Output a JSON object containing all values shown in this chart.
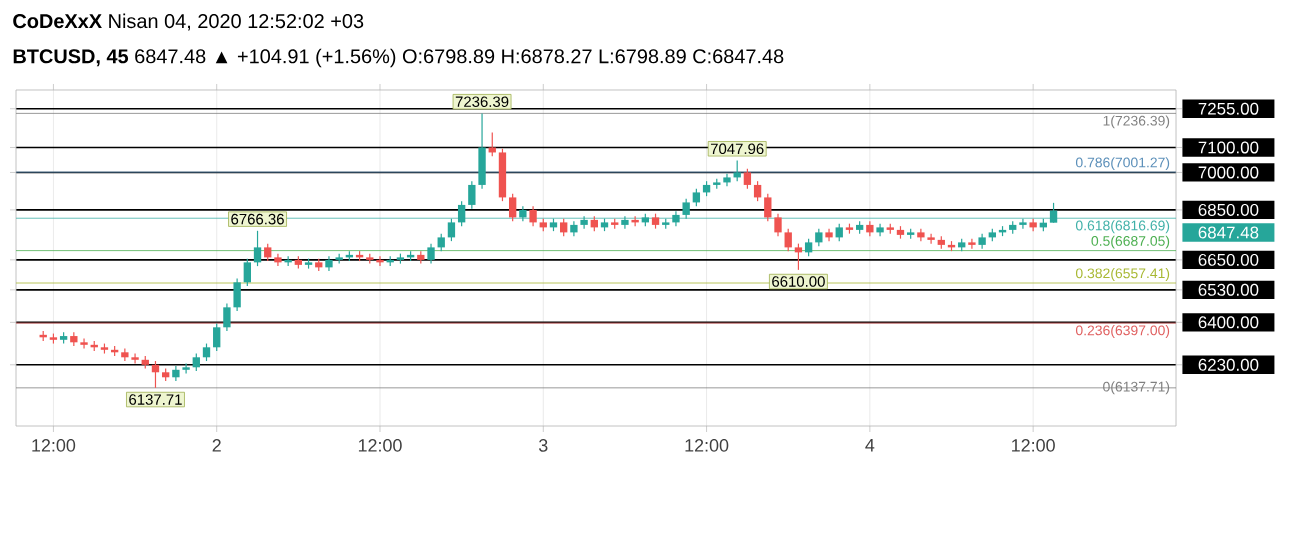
{
  "chart_data": {
    "type": "candlestick",
    "title": "**CoDeXxX** Nisan 04, 2020 12:52:02 +03",
    "subtitle": "**BTCUSD, 45** 6847.48 ▲ +104.91 (+1.56%) O:6798.89 H:6878.27 L:6798.89 C:6847.48",
    "x": [
      "2020-04-01T11:15",
      "2020-04-01T12:00",
      "2020-04-01T12:45",
      "2020-04-01T13:30",
      "2020-04-01T14:15",
      "2020-04-01T15:00",
      "2020-04-01T15:45",
      "2020-04-01T16:30",
      "2020-04-01T17:15",
      "2020-04-01T18:00",
      "2020-04-01T18:45",
      "2020-04-01T19:30",
      "2020-04-01T20:15",
      "2020-04-01T21:00",
      "2020-04-01T21:45",
      "2020-04-01T22:30",
      "2020-04-01T23:15",
      "2020-04-02T00:00",
      "2020-04-02T00:45",
      "2020-04-02T01:30",
      "2020-04-02T02:15",
      "2020-04-02T03:00",
      "2020-04-02T03:45",
      "2020-04-02T04:30",
      "2020-04-02T05:15",
      "2020-04-02T06:00",
      "2020-04-02T06:45",
      "2020-04-02T07:30",
      "2020-04-02T08:15",
      "2020-04-02T09:00",
      "2020-04-02T09:45",
      "2020-04-02T10:30",
      "2020-04-02T11:15",
      "2020-04-02T12:00",
      "2020-04-02T12:45",
      "2020-04-02T13:30",
      "2020-04-02T14:15",
      "2020-04-02T15:00",
      "2020-04-02T15:45",
      "2020-04-02T16:30",
      "2020-04-02T17:15",
      "2020-04-02T18:00",
      "2020-04-02T18:45",
      "2020-04-02T19:30",
      "2020-04-02T20:15",
      "2020-04-02T21:00",
      "2020-04-02T21:45",
      "2020-04-02T22:30",
      "2020-04-02T23:15",
      "2020-04-03T00:00",
      "2020-04-03T00:45",
      "2020-04-03T01:30",
      "2020-04-03T02:15",
      "2020-04-03T03:00",
      "2020-04-03T03:45",
      "2020-04-03T04:30",
      "2020-04-03T05:15",
      "2020-04-03T06:00",
      "2020-04-03T06:45",
      "2020-04-03T07:30",
      "2020-04-03T08:15",
      "2020-04-03T09:00",
      "2020-04-03T09:45",
      "2020-04-03T10:30",
      "2020-04-03T11:15",
      "2020-04-03T12:00",
      "2020-04-03T12:45",
      "2020-04-03T13:30",
      "2020-04-03T14:15",
      "2020-04-03T15:00",
      "2020-04-03T15:45",
      "2020-04-03T16:30",
      "2020-04-03T17:15",
      "2020-04-03T18:00",
      "2020-04-03T18:45",
      "2020-04-03T19:30",
      "2020-04-03T20:15",
      "2020-04-03T21:00",
      "2020-04-03T21:45",
      "2020-04-03T22:30",
      "2020-04-03T23:15",
      "2020-04-04T00:00",
      "2020-04-04T00:45",
      "2020-04-04T01:30",
      "2020-04-04T02:15",
      "2020-04-04T03:00",
      "2020-04-04T03:45",
      "2020-04-04T04:30",
      "2020-04-04T05:15",
      "2020-04-04T06:00",
      "2020-04-04T06:45",
      "2020-04-04T07:30",
      "2020-04-04T08:15",
      "2020-04-04T09:00",
      "2020-04-04T09:45",
      "2020-04-04T10:30",
      "2020-04-04T11:15",
      "2020-04-04T12:00",
      "2020-04-04T12:45",
      "2020-04-04T13:30"
    ],
    "ohlc": [
      [
        6350,
        6365,
        6325,
        6340
      ],
      [
        6340,
        6355,
        6315,
        6330
      ],
      [
        6330,
        6360,
        6315,
        6345
      ],
      [
        6345,
        6360,
        6305,
        6320
      ],
      [
        6320,
        6335,
        6295,
        6310
      ],
      [
        6310,
        6325,
        6285,
        6300
      ],
      [
        6300,
        6315,
        6275,
        6290
      ],
      [
        6290,
        6305,
        6265,
        6280
      ],
      [
        6280,
        6295,
        6245,
        6260
      ],
      [
        6260,
        6275,
        6235,
        6250
      ],
      [
        6250,
        6265,
        6215,
        6230
      ],
      [
        6230,
        6245,
        6137.71,
        6200
      ],
      [
        6200,
        6215,
        6165,
        6180
      ],
      [
        6180,
        6225,
        6165,
        6210
      ],
      [
        6210,
        6235,
        6195,
        6220
      ],
      [
        6220,
        6275,
        6205,
        6260
      ],
      [
        6260,
        6315,
        6245,
        6300
      ],
      [
        6300,
        6395,
        6285,
        6380
      ],
      [
        6380,
        6475,
        6365,
        6460
      ],
      [
        6460,
        6575,
        6445,
        6560
      ],
      [
        6560,
        6655,
        6545,
        6640
      ],
      [
        6640,
        6766.36,
        6625,
        6700
      ],
      [
        6700,
        6715,
        6645,
        6660
      ],
      [
        6660,
        6675,
        6625,
        6640
      ],
      [
        6640,
        6665,
        6625,
        6650
      ],
      [
        6650,
        6665,
        6615,
        6630
      ],
      [
        6630,
        6655,
        6615,
        6640
      ],
      [
        6640,
        6655,
        6605,
        6620
      ],
      [
        6620,
        6665,
        6605,
        6650
      ],
      [
        6650,
        6675,
        6635,
        6660
      ],
      [
        6660,
        6685,
        6645,
        6670
      ],
      [
        6670,
        6685,
        6645,
        6660
      ],
      [
        6660,
        6675,
        6635,
        6650
      ],
      [
        6650,
        6665,
        6625,
        6640
      ],
      [
        6640,
        6665,
        6625,
        6650
      ],
      [
        6650,
        6675,
        6635,
        6660
      ],
      [
        6660,
        6685,
        6645,
        6670
      ],
      [
        6670,
        6685,
        6635,
        6650
      ],
      [
        6650,
        6715,
        6635,
        6700
      ],
      [
        6700,
        6755,
        6685,
        6740
      ],
      [
        6740,
        6815,
        6725,
        6800
      ],
      [
        6800,
        6885,
        6785,
        6870
      ],
      [
        6870,
        6965,
        6855,
        6950
      ],
      [
        6950,
        7236.39,
        6935,
        7100
      ],
      [
        7100,
        7160,
        7065,
        7080
      ],
      [
        7080,
        7095,
        6885,
        6900
      ],
      [
        6900,
        6915,
        6805,
        6820
      ],
      [
        6820,
        6865,
        6805,
        6850
      ],
      [
        6850,
        6865,
        6785,
        6800
      ],
      [
        6800,
        6815,
        6765,
        6780
      ],
      [
        6780,
        6815,
        6765,
        6800
      ],
      [
        6800,
        6815,
        6745,
        6760
      ],
      [
        6760,
        6805,
        6745,
        6790
      ],
      [
        6790,
        6825,
        6775,
        6810
      ],
      [
        6810,
        6825,
        6765,
        6780
      ],
      [
        6780,
        6815,
        6765,
        6800
      ],
      [
        6800,
        6815,
        6775,
        6790
      ],
      [
        6790,
        6825,
        6775,
        6810
      ],
      [
        6810,
        6825,
        6785,
        6800
      ],
      [
        6800,
        6835,
        6785,
        6820
      ],
      [
        6820,
        6835,
        6775,
        6790
      ],
      [
        6790,
        6815,
        6775,
        6800
      ],
      [
        6800,
        6845,
        6785,
        6830
      ],
      [
        6830,
        6895,
        6815,
        6880
      ],
      [
        6880,
        6935,
        6865,
        6920
      ],
      [
        6920,
        6965,
        6905,
        6950
      ],
      [
        6950,
        6975,
        6935,
        6960
      ],
      [
        6960,
        6995,
        6945,
        6980
      ],
      [
        6980,
        7047.96,
        6965,
        7000
      ],
      [
        7000,
        7015,
        6935,
        6950
      ],
      [
        6950,
        6965,
        6885,
        6900
      ],
      [
        6900,
        6915,
        6805,
        6820
      ],
      [
        6820,
        6835,
        6745,
        6760
      ],
      [
        6760,
        6775,
        6685,
        6700
      ],
      [
        6700,
        6715,
        6610,
        6680
      ],
      [
        6680,
        6735,
        6665,
        6720
      ],
      [
        6720,
        6775,
        6705,
        6760
      ],
      [
        6760,
        6775,
        6725,
        6740
      ],
      [
        6740,
        6795,
        6725,
        6780
      ],
      [
        6780,
        6795,
        6755,
        6770
      ],
      [
        6770,
        6805,
        6755,
        6790
      ],
      [
        6790,
        6805,
        6745,
        6760
      ],
      [
        6760,
        6795,
        6745,
        6780
      ],
      [
        6780,
        6795,
        6755,
        6770
      ],
      [
        6770,
        6785,
        6735,
        6750
      ],
      [
        6750,
        6775,
        6735,
        6760
      ],
      [
        6760,
        6775,
        6725,
        6740
      ],
      [
        6740,
        6755,
        6715,
        6730
      ],
      [
        6730,
        6745,
        6695,
        6710
      ],
      [
        6710,
        6725,
        6685,
        6700
      ],
      [
        6700,
        6735,
        6685,
        6720
      ],
      [
        6720,
        6735,
        6695,
        6710
      ],
      [
        6710,
        6755,
        6695,
        6740
      ],
      [
        6740,
        6775,
        6725,
        6760
      ],
      [
        6760,
        6785,
        6745,
        6770
      ],
      [
        6770,
        6805,
        6755,
        6790
      ],
      [
        6790,
        6815,
        6775,
        6800
      ],
      [
        6800,
        6815,
        6765,
        6780
      ],
      [
        6780,
        6815,
        6765,
        6798.89
      ],
      [
        6798.89,
        6878.27,
        6798.89,
        6847.48
      ]
    ],
    "xlim": [
      "2020-04-01T09:15",
      "2020-04-04T22:30"
    ],
    "xticks": [
      {
        "value": "2020-04-01T12:00",
        "label": "12:00"
      },
      {
        "value": "2020-04-02",
        "label": "2"
      },
      {
        "value": "2020-04-02T12:00",
        "label": "12:00"
      },
      {
        "value": "2020-04-03",
        "label": "3"
      },
      {
        "value": "2020-04-03T12:00",
        "label": "12:00"
      },
      {
        "value": "2020-04-04",
        "label": "4"
      },
      {
        "value": "2020-04-04T12:00",
        "label": "12:00"
      }
    ],
    "ylim": [
      5985,
      7330
    ],
    "yticks": [
      {
        "value": 7255,
        "label": "7255.00"
      },
      {
        "value": 7100,
        "label": "7100.00"
      },
      {
        "value": 7000,
        "label": "7000.00"
      },
      {
        "value": 6850,
        "label": "6850.00"
      },
      {
        "value": 6650,
        "label": "6650.00"
      },
      {
        "value": 6530,
        "label": "6530.00"
      },
      {
        "value": 6400,
        "label": "6400.00"
      },
      {
        "value": 6230,
        "label": "6230.00"
      }
    ],
    "grid": true,
    "ref_lines": [
      {
        "axis": "y",
        "value": 7236.39,
        "label": "1(7236.39)",
        "color": "#808080"
      },
      {
        "axis": "y",
        "value": 7001.27,
        "label": "0.786(7001.27)",
        "color": "#5b8fb9"
      },
      {
        "axis": "y",
        "value": 6816.69,
        "label": "0.618(6816.69)",
        "color": "#3fb0a8"
      },
      {
        "axis": "y",
        "value": 6687.05,
        "label": "0.5(6687.05)",
        "color": "#4caf50"
      },
      {
        "axis": "y",
        "value": 6557.41,
        "label": "0.382(6557.41)",
        "color": "#a8b832"
      },
      {
        "axis": "y",
        "value": 6397.0,
        "label": "0.236(6397.00)",
        "color": "#e06060"
      },
      {
        "axis": "y",
        "value": 6137.71,
        "label": "0(6137.71)",
        "color": "#808080"
      }
    ],
    "annotations": [
      "6847.48",
      {
        "text": "7236.39",
        "x": "2020-04-02T19:30",
        "y": 7236.39
      },
      {
        "text": "7047.96",
        "x": "2020-04-03T14:15",
        "y": 7047.96
      },
      {
        "text": "6766.36",
        "x": "2020-04-02T03:00",
        "y": 6766.36
      },
      {
        "text": "6610.00",
        "x": "2020-04-03T18:45",
        "y": 6610
      },
      {
        "text": "6137.71",
        "x": "2020-04-01T19:30",
        "y": 6137.71
      }
    ]
  }
}
